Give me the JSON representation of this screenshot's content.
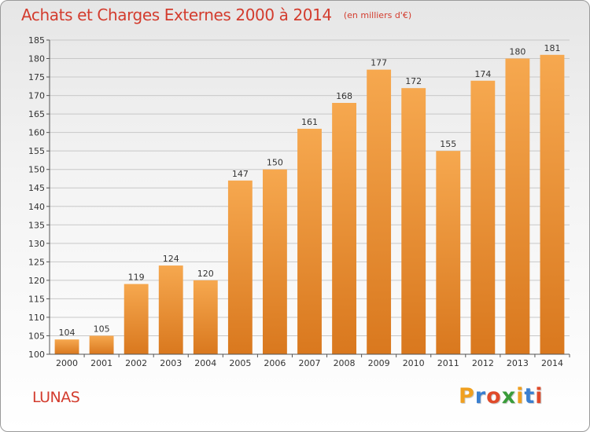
{
  "title": "Achats et Charges Externes 2000 à 2014",
  "unit": "(en milliers d'€)",
  "commune": "LUNAS",
  "brand": "Proxiti",
  "colors": {
    "title": "#d33c2e",
    "bar_light": "#f6a84f",
    "bar_dark": "#d9781e",
    "grid": "#c8c8c8",
    "logo": [
      "#f0a020",
      "#3a7fd0",
      "#e04a2a",
      "#3a9c3a",
      "#f0a020",
      "#3a7fd0",
      "#e04a2a"
    ]
  },
  "chart_data": {
    "type": "bar",
    "title": "Achats et Charges Externes 2000 à 2014",
    "subtitle": "(en milliers d'€)",
    "xlabel": "",
    "ylabel": "",
    "categories": [
      "2000",
      "2001",
      "2002",
      "2003",
      "2004",
      "2005",
      "2006",
      "2007",
      "2008",
      "2009",
      "2010",
      "2011",
      "2012",
      "2013",
      "2014"
    ],
    "values": [
      104,
      105,
      119,
      124,
      120,
      147,
      150,
      161,
      168,
      177,
      172,
      155,
      174,
      180,
      181
    ],
    "ylim": [
      100,
      185
    ],
    "yticks": [
      100,
      105,
      110,
      115,
      120,
      125,
      130,
      135,
      140,
      145,
      150,
      155,
      160,
      165,
      170,
      175,
      180,
      185
    ],
    "grid": true,
    "legend": "none"
  }
}
